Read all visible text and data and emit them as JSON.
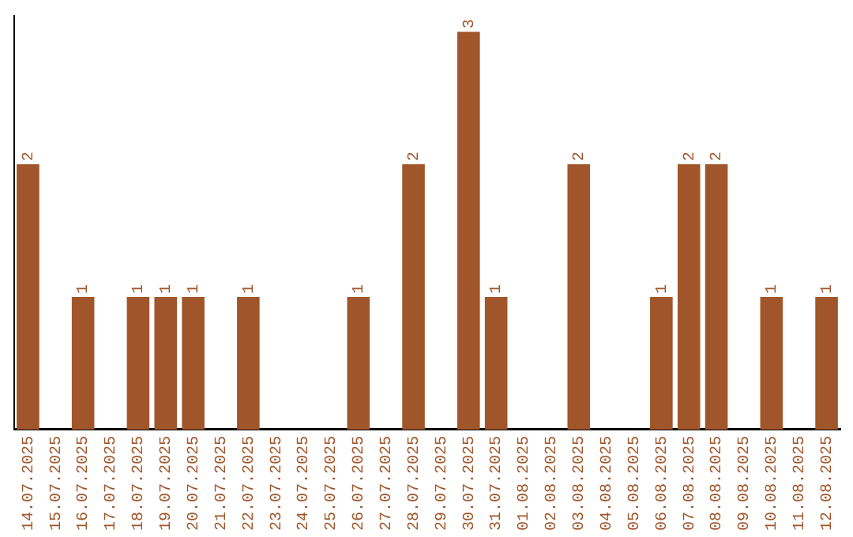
{
  "chart_data": {
    "type": "bar",
    "categories": [
      "14.07.2025",
      "15.07.2025",
      "16.07.2025",
      "17.07.2025",
      "18.07.2025",
      "19.07.2025",
      "20.07.2025",
      "21.07.2025",
      "22.07.2025",
      "23.07.2025",
      "24.07.2025",
      "25.07.2025",
      "26.07.2025",
      "27.07.2025",
      "28.07.2025",
      "29.07.2025",
      "30.07.2025",
      "31.07.2025",
      "01.08.2025",
      "02.08.2025",
      "03.08.2025",
      "04.08.2025",
      "05.08.2025",
      "06.08.2025",
      "07.08.2025",
      "08.08.2025",
      "09.08.2025",
      "10.08.2025",
      "11.08.2025",
      "12.08.2025"
    ],
    "values": [
      2,
      0,
      1,
      0,
      1,
      1,
      1,
      0,
      1,
      0,
      0,
      0,
      1,
      0,
      2,
      0,
      3,
      1,
      0,
      0,
      2,
      0,
      0,
      1,
      2,
      2,
      0,
      1,
      0,
      1
    ],
    "value_labels": [
      "2",
      null,
      "1",
      null,
      "1",
      "1",
      "1",
      null,
      "1",
      null,
      null,
      null,
      "1",
      null,
      "2",
      null,
      "3",
      "1",
      null,
      null,
      "2",
      null,
      null,
      "1",
      "2",
      "2",
      null,
      "1",
      null,
      "1"
    ],
    "color": "#a0562a",
    "grid": false,
    "legend": false
  }
}
